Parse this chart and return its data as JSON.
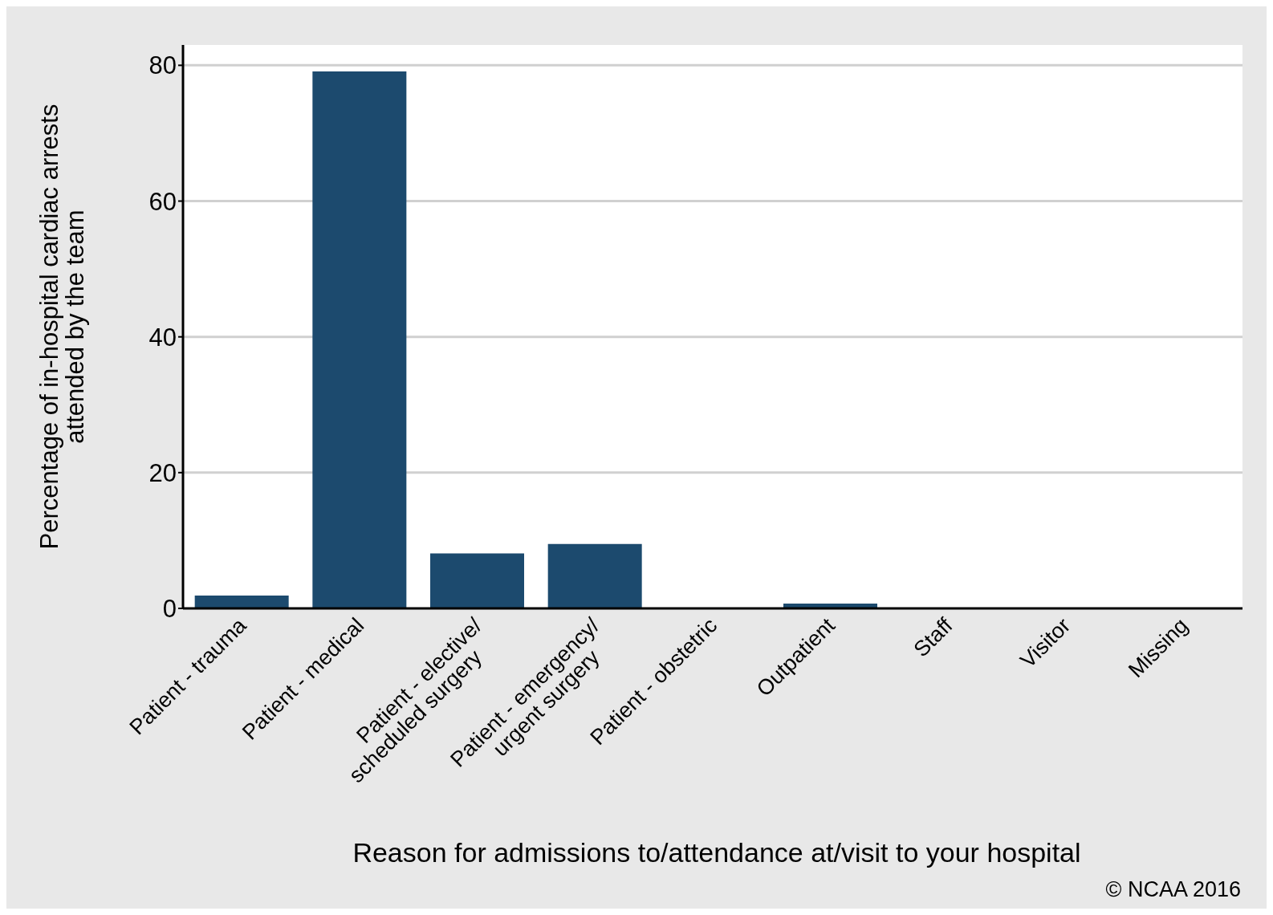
{
  "chart_data": {
    "type": "bar",
    "xlabel": "Reason for admissions to/attendance at/visit to your hospital",
    "ylabel": "Percentage of in-hospital cardiac arrests\nattended by the team",
    "categories": [
      "Patient - trauma",
      "Patient - medical",
      "Patient - elective/\nscheduled surgery",
      "Patient - emergency/\nurgent surgery",
      "Patient - obstetric",
      "Outpatient",
      "Staff",
      "Visitor",
      "Missing"
    ],
    "values": [
      1.9,
      79.1,
      8.1,
      9.5,
      0,
      0.7,
      0,
      0,
      0
    ],
    "color": "#1c4a6e",
    "ylim": [
      0,
      83
    ],
    "yticks": [
      0,
      20,
      40,
      60,
      80
    ],
    "grid": "y",
    "annotations": [
      "© NCAA 2016"
    ]
  }
}
